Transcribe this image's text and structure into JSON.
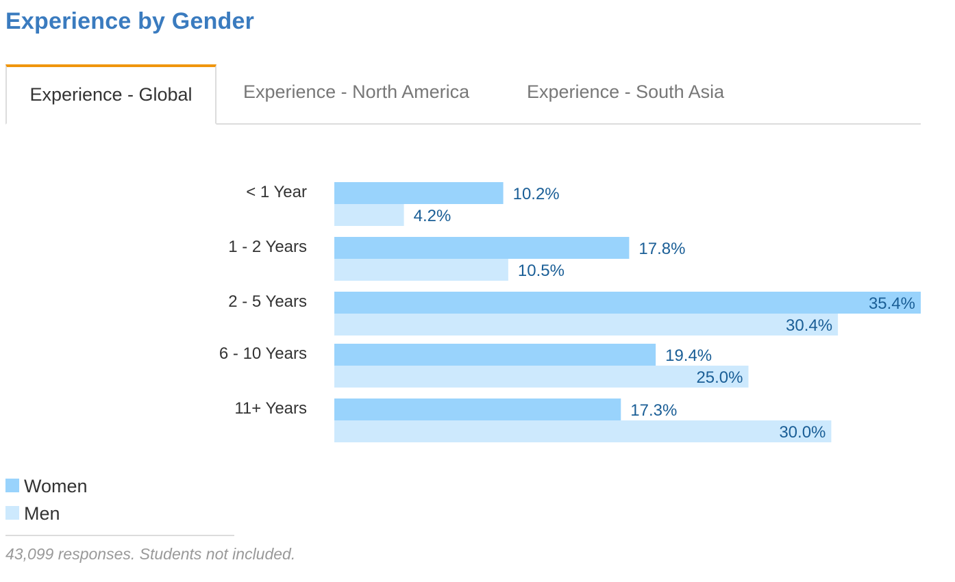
{
  "page_title": "Experience by Gender",
  "tabs": [
    {
      "label": "Experience - Global",
      "active": true
    },
    {
      "label": "Experience - North America",
      "active": false
    },
    {
      "label": "Experience - South Asia",
      "active": false
    }
  ],
  "colors": {
    "title": "#3a7bbf",
    "active_tab_accent": "#f0960e",
    "women": "#99d3fc",
    "men": "#cde9fd",
    "value_label": "#1a5e96"
  },
  "chart_data": {
    "type": "bar",
    "orientation": "horizontal",
    "categories": [
      "< 1 Year",
      "1 - 2 Years",
      "2 - 5 Years",
      "6 - 10 Years",
      "11+ Years"
    ],
    "series": [
      {
        "name": "Women",
        "values": [
          10.2,
          17.8,
          35.4,
          19.4,
          17.3
        ],
        "labels": [
          "10.2%",
          "17.8%",
          "35.4%",
          "19.4%",
          "17.3%"
        ]
      },
      {
        "name": "Men",
        "values": [
          4.2,
          10.5,
          30.4,
          25.0,
          30.0
        ],
        "labels": [
          "4.2%",
          "10.5%",
          "30.4%",
          "25.0%",
          "30.0%"
        ]
      }
    ],
    "xlim": [
      0,
      35.4
    ],
    "grid": false,
    "legend_position": "bottom-left"
  },
  "legend": {
    "items": [
      {
        "label": "Women"
      },
      {
        "label": "Men"
      }
    ]
  },
  "footnote": "43,099 responses. Students not included."
}
